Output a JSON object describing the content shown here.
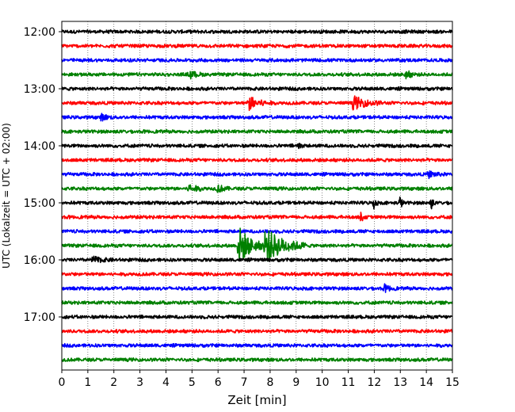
{
  "chart_data": {
    "type": "line",
    "title": "",
    "xlabel": "Zeit  [min]",
    "ylabel": "UTC (Lokalzeit = UTC + 02:00)",
    "xlim": [
      0,
      15
    ],
    "xticks": [
      0,
      1,
      2,
      3,
      4,
      5,
      6,
      7,
      8,
      9,
      10,
      11,
      12,
      13,
      14,
      15
    ],
    "y_tick_labels": [
      "12:00",
      "13:00",
      "14:00",
      "15:00",
      "16:00",
      "17:00"
    ],
    "traces_per_hour": 4,
    "trace_start_times": [
      "12:00",
      "12:15",
      "12:30",
      "12:45",
      "13:00",
      "13:15",
      "13:30",
      "13:45",
      "14:00",
      "14:15",
      "14:30",
      "14:45",
      "15:00",
      "15:15",
      "15:30",
      "15:45",
      "16:00",
      "16:15",
      "16:30",
      "16:45",
      "17:00",
      "17:15",
      "17:30",
      "17:45"
    ],
    "trace_colors": [
      "#000000",
      "#ff0000",
      "#0000ff",
      "#008000"
    ],
    "grid": "vertical dotted at each minute",
    "events": [
      {
        "trace": 3,
        "minute": 4.9,
        "amplitude": 0.25,
        "duration": 0.6
      },
      {
        "trace": 3,
        "minute": 13.2,
        "amplitude": 0.25,
        "duration": 0.5
      },
      {
        "trace": 5,
        "minute": 7.2,
        "amplitude": 0.45,
        "duration": 0.9
      },
      {
        "trace": 5,
        "minute": 11.2,
        "amplitude": 0.45,
        "duration": 1.1
      },
      {
        "trace": 6,
        "minute": 1.5,
        "amplitude": 0.2,
        "duration": 0.5
      },
      {
        "trace": 8,
        "minute": 9.1,
        "amplitude": 0.35,
        "duration": 0.15
      },
      {
        "trace": 10,
        "minute": 14.1,
        "amplitude": 0.2,
        "duration": 0.6
      },
      {
        "trace": 11,
        "minute": 4.9,
        "amplitude": 0.3,
        "duration": 0.6
      },
      {
        "trace": 11,
        "minute": 6.0,
        "amplitude": 0.25,
        "duration": 0.5
      },
      {
        "trace": 12,
        "minute": 12.0,
        "amplitude": 0.45,
        "duration": 0.15
      },
      {
        "trace": 12,
        "minute": 13.0,
        "amplitude": 0.45,
        "duration": 0.15
      },
      {
        "trace": 12,
        "minute": 14.2,
        "amplitude": 0.35,
        "duration": 0.15
      },
      {
        "trace": 13,
        "minute": 11.5,
        "amplitude": 0.35,
        "duration": 0.15
      },
      {
        "trace": 15,
        "minute": 6.8,
        "amplitude": 1.35,
        "duration": 1.0
      },
      {
        "trace": 15,
        "minute": 7.8,
        "amplitude": 1.25,
        "duration": 1.6
      },
      {
        "trace": 16,
        "minute": 1.2,
        "amplitude": 0.2,
        "duration": 0.8
      },
      {
        "trace": 18,
        "minute": 12.4,
        "amplitude": 0.2,
        "duration": 0.5
      }
    ]
  }
}
